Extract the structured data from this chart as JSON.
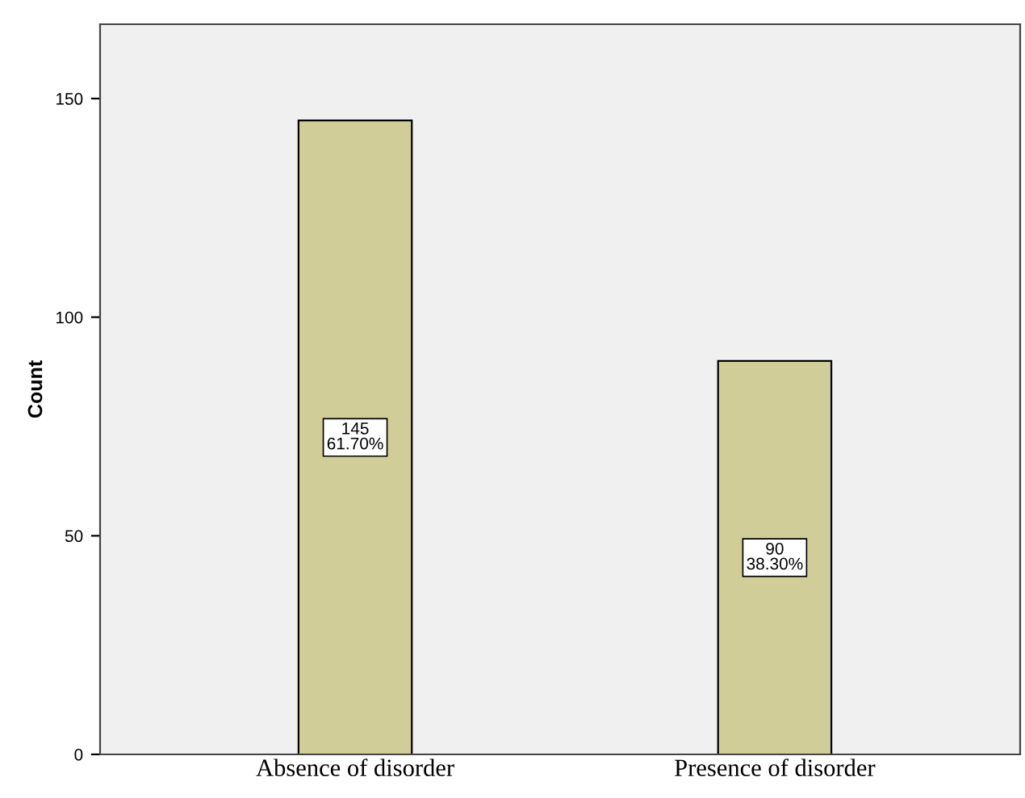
{
  "chart_data": {
    "type": "bar",
    "ylabel": "Count",
    "categories": [
      "Absence of disorder",
      "Presence of disorder"
    ],
    "values": [
      145,
      90
    ],
    "value_labels": [
      "145\n61.70%",
      "90\n38.30%"
    ],
    "color": "#d1cd99",
    "ylim": [
      0,
      167
    ],
    "yticks": [
      0,
      50,
      100,
      150
    ],
    "grid": false
  }
}
